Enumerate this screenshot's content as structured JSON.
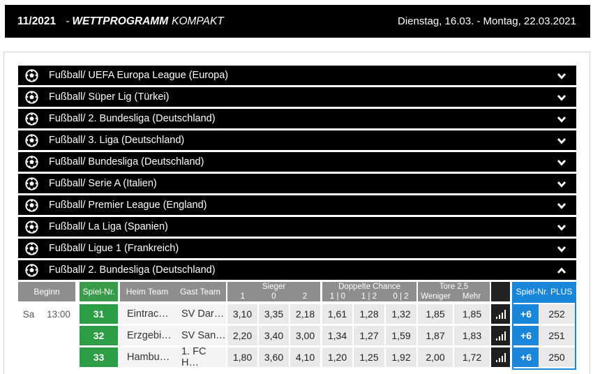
{
  "header": {
    "week": "11/2021",
    "separator": "-",
    "program_bold": "WETTPROGRAMM",
    "program_rest": "KOMPAKT",
    "date_range": "Dienstag, 16.03. - Montag, 22.03.2021"
  },
  "leagues": [
    {
      "title": "Fußball/ UEFA Europa League (Europa)",
      "icon": "soccer-ball-icon",
      "expanded": false
    },
    {
      "title": "Fußball/ Süper Lig (Türkei)",
      "icon": "soccer-ball-icon",
      "expanded": false
    },
    {
      "title": "Fußball/ 2. Bundesliga (Deutschland)",
      "icon": "soccer-ball-icon",
      "expanded": false
    },
    {
      "title": "Fußball/ 3. Liga (Deutschland)",
      "icon": "soccer-ball-icon",
      "expanded": false
    },
    {
      "title": "Fußball/ Bundesliga (Deutschland)",
      "icon": "soccer-ball-icon",
      "expanded": false
    },
    {
      "title": "Fußball/ Serie A (Italien)",
      "icon": "soccer-ball-icon",
      "expanded": false
    },
    {
      "title": "Fußball/ Premier League (England)",
      "icon": "soccer-ball-icon",
      "expanded": false
    },
    {
      "title": "Fußball/ La Liga (Spanien)",
      "icon": "soccer-ball-icon",
      "expanded": false
    },
    {
      "title": "Fußball/ Ligue 1 (Frankreich)",
      "icon": "soccer-ball-icon",
      "expanded": false
    },
    {
      "title": "Fußball/ 2. Bundesliga (Deutschland)",
      "icon": "soccer-ball-icon",
      "expanded": true
    }
  ],
  "table": {
    "headers": {
      "beginn": "Beginn",
      "spiel_nr": "Spiel-Nr.",
      "heim": "Heim Team",
      "gast": "Gast Team",
      "sieger": "Sieger",
      "sieger_1": "1",
      "sieger_0": "0",
      "sieger_2": "2",
      "doppelte": "Doppelte Chance",
      "dc_10": "1 | 0",
      "dc_12": "1 | 2",
      "dc_02": "0 | 2",
      "tore": "Tore 2,5",
      "weniger": "Weniger",
      "mehr": "Mehr",
      "plus": "Spiel-Nr. PLUS"
    },
    "rows": [
      {
        "day": "Sa",
        "time": "13:00",
        "nr": "31",
        "home": "Eintrac…",
        "away": "SV Dar…",
        "s1": "3,10",
        "s0": "3,35",
        "s2": "2,18",
        "d10": "1,61",
        "d12": "1,28",
        "d02": "1,32",
        "weniger": "1,85",
        "mehr": "1,85",
        "plus": "+6",
        "plusnr": "252"
      },
      {
        "day": "",
        "time": "",
        "nr": "32",
        "home": "Erzgebi…",
        "away": "SV San…",
        "s1": "2,20",
        "s0": "3,40",
        "s2": "3,00",
        "d10": "1,34",
        "d12": "1,27",
        "d02": "1,59",
        "weniger": "1,87",
        "mehr": "1,83",
        "plus": "+6",
        "plusnr": "251"
      },
      {
        "day": "",
        "time": "",
        "nr": "33",
        "home": "Hambu…",
        "away": "1. FC H…",
        "s1": "1,80",
        "s0": "3,60",
        "s2": "4,10",
        "d10": "1,20",
        "d12": "1,25",
        "d02": "1,92",
        "weniger": "2,00",
        "mehr": "1,72",
        "plus": "+6",
        "plusnr": "250"
      }
    ]
  },
  "colors": {
    "bar": "#000000",
    "green": "#2e9e46",
    "blue": "#1a86d9",
    "header_gray": "#8e8e8e"
  }
}
